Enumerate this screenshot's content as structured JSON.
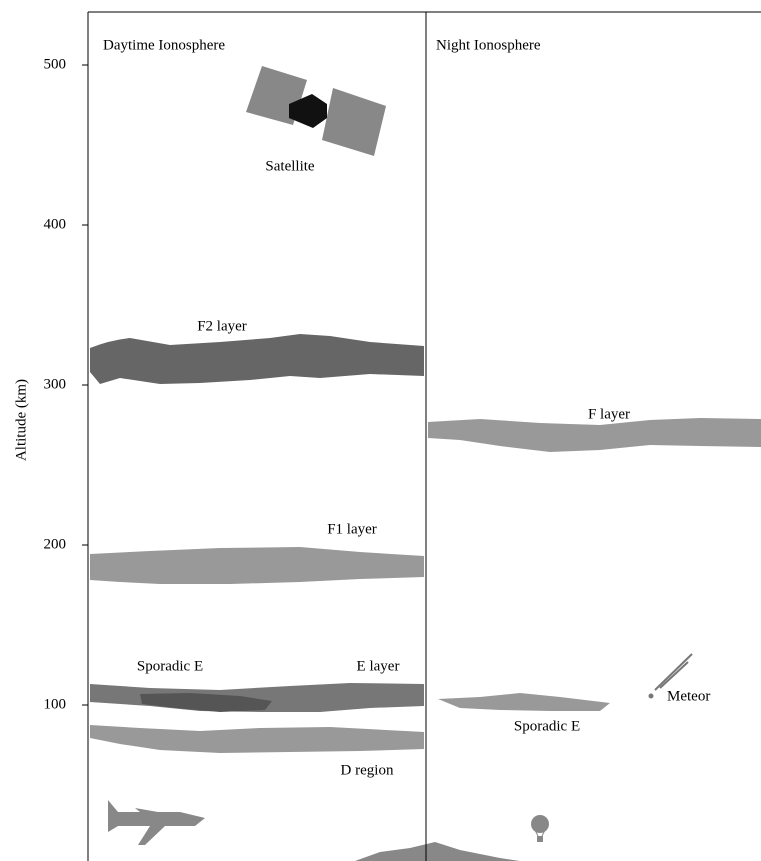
{
  "axis": {
    "label": "Altitude (km)",
    "ticks": [
      100,
      200,
      300,
      400,
      500
    ]
  },
  "panels": [
    {
      "title": "Daytime Ionosphere"
    },
    {
      "title": "Night Ionosphere"
    }
  ],
  "labels": {
    "satellite": "Satellite",
    "f2": "F2 layer",
    "f1": "F1 layer",
    "sporadic_day": "Sporadic E",
    "e": "E layer",
    "d": "D region",
    "f_night": "F layer",
    "sporadic_night": "Sporadic E",
    "meteor": "Meteor"
  }
}
